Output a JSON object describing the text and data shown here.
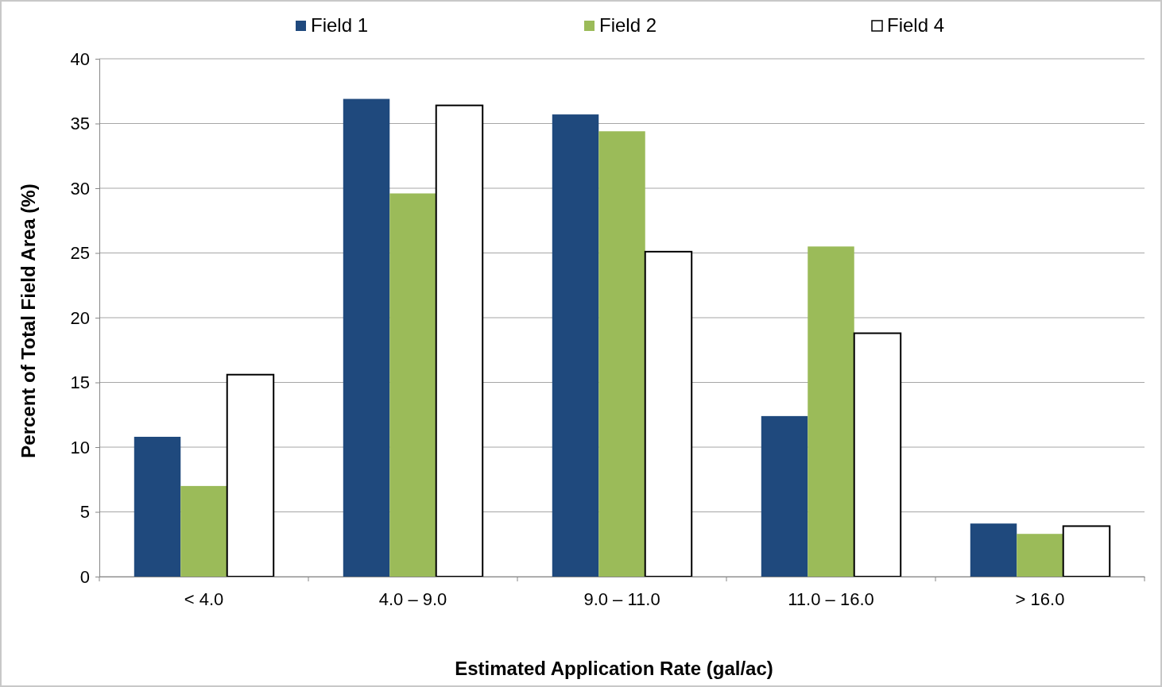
{
  "chart_data": {
    "type": "bar",
    "xlabel": "Estimated Application Rate (gal/ac)",
    "ylabel": "Percent of Total Field Area (%)",
    "categories": [
      "< 4.0",
      "4.0 – 9.0",
      "9.0 – 11.0",
      "11.0 – 16.0",
      "> 16.0"
    ],
    "series": [
      {
        "name": "Field 1",
        "color": "#1f497d",
        "values": [
          10.8,
          36.9,
          35.7,
          12.4,
          4.1
        ]
      },
      {
        "name": "Field 2",
        "color": "#9bbb59",
        "values": [
          7.0,
          29.6,
          34.4,
          25.5,
          3.3
        ]
      },
      {
        "name": "Field 4",
        "color": "#ffffff",
        "values": [
          15.6,
          36.4,
          25.1,
          18.8,
          3.9
        ]
      }
    ],
    "ylim": [
      0,
      40
    ],
    "yticks": [
      0,
      5,
      10,
      15,
      20,
      25,
      30,
      35,
      40
    ],
    "grid": "y",
    "legend": "top"
  }
}
